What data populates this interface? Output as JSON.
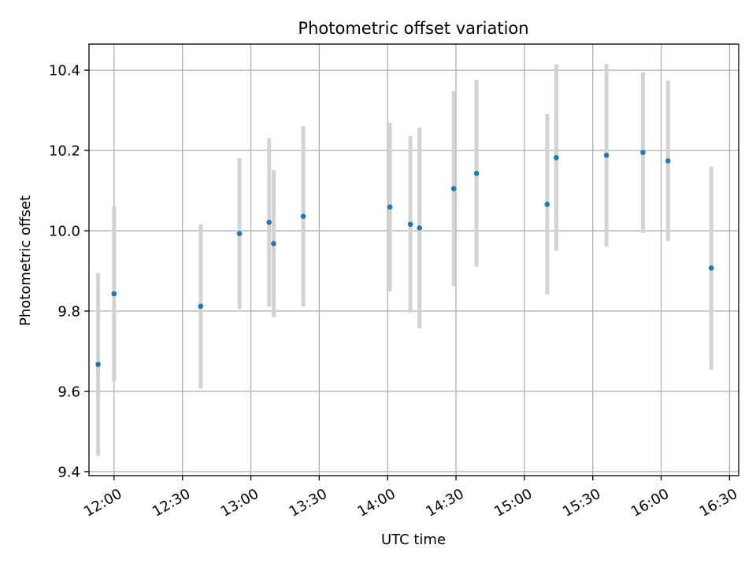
{
  "chart_data": {
    "type": "scatter",
    "title": "Photometric offset variation",
    "xlabel": "UTC time",
    "ylabel": "Photometric offset",
    "x_tick_labels": [
      "12:00",
      "12:30",
      "13:00",
      "13:30",
      "14:00",
      "14:30",
      "15:00",
      "15:30",
      "16:00",
      "16:30"
    ],
    "y_tick_labels": [
      "9.4",
      "9.6",
      "9.8",
      "10.0",
      "10.2",
      "10.4"
    ],
    "xlim": [
      "11:49",
      "16:34"
    ],
    "ylim": [
      9.39,
      10.465
    ],
    "grid": true,
    "colors": {
      "points": "#1f77b4",
      "errorbars": "#d3d3d3",
      "grid": "#b0b0b0"
    },
    "points": [
      {
        "x": "11:53",
        "y": 9.667,
        "err": 0.228
      },
      {
        "x": "12:00",
        "y": 9.843,
        "err": 0.218
      },
      {
        "x": "12:38",
        "y": 9.812,
        "err": 0.205
      },
      {
        "x": "12:55",
        "y": 9.993,
        "err": 0.188
      },
      {
        "x": "13:08",
        "y": 10.021,
        "err": 0.21
      },
      {
        "x": "13:10",
        "y": 9.968,
        "err": 0.183
      },
      {
        "x": "13:23",
        "y": 10.036,
        "err": 0.225
      },
      {
        "x": "14:01",
        "y": 10.059,
        "err": 0.21
      },
      {
        "x": "14:10",
        "y": 10.016,
        "err": 0.22
      },
      {
        "x": "14:14",
        "y": 10.007,
        "err": 0.25
      },
      {
        "x": "14:29",
        "y": 10.105,
        "err": 0.243
      },
      {
        "x": "14:39",
        "y": 10.143,
        "err": 0.233
      },
      {
        "x": "15:10",
        "y": 10.066,
        "err": 0.225
      },
      {
        "x": "15:14",
        "y": 10.182,
        "err": 0.232
      },
      {
        "x": "15:36",
        "y": 10.188,
        "err": 0.228
      },
      {
        "x": "15:52",
        "y": 10.195,
        "err": 0.2
      },
      {
        "x": "16:03",
        "y": 10.174,
        "err": 0.2
      },
      {
        "x": "16:22",
        "y": 9.907,
        "err": 0.253
      }
    ]
  }
}
